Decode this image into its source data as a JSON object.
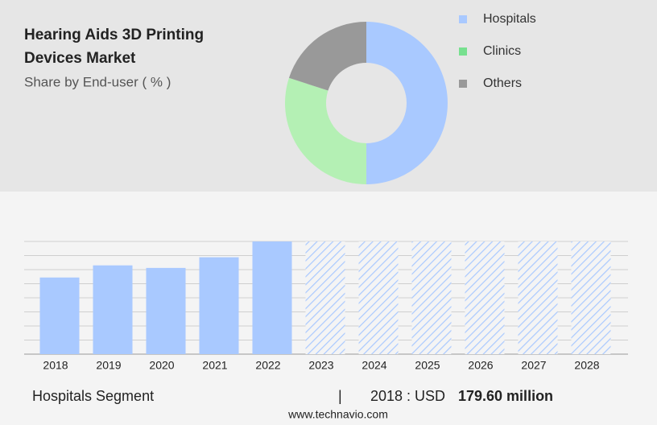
{
  "chart_data": [
    {
      "type": "donut",
      "title": "Hearing Aids 3D Printing Devices Market",
      "subtitle": "Share by End-user ( % )",
      "categories": [
        "Hospitals",
        "Clinics",
        "Others"
      ],
      "values": [
        50,
        30,
        20
      ],
      "colors": [
        "#a9c9ff",
        "#b4f0b4",
        "#999999"
      ],
      "legend_colors": [
        "#a9c9ff",
        "#77e08f",
        "#999999"
      ]
    },
    {
      "type": "bar",
      "categories": [
        "2018",
        "2019",
        "2020",
        "2021",
        "2022",
        "2023",
        "2024",
        "2025",
        "2026",
        "2027",
        "2028"
      ],
      "values": [
        179.6,
        208,
        202,
        227,
        264,
        null,
        null,
        null,
        null,
        null,
        null
      ],
      "color": "#a9c9ff",
      "ylim": [
        0,
        264
      ],
      "yticks": [
        0,
        33,
        66,
        99,
        132,
        165,
        198,
        231,
        264
      ],
      "grid": true
    }
  ],
  "footer": {
    "segment": "Hospitals Segment",
    "separator": "|",
    "year_label": "2018 : USD",
    "value": "179.60 million",
    "source": "www.technavio.com"
  }
}
